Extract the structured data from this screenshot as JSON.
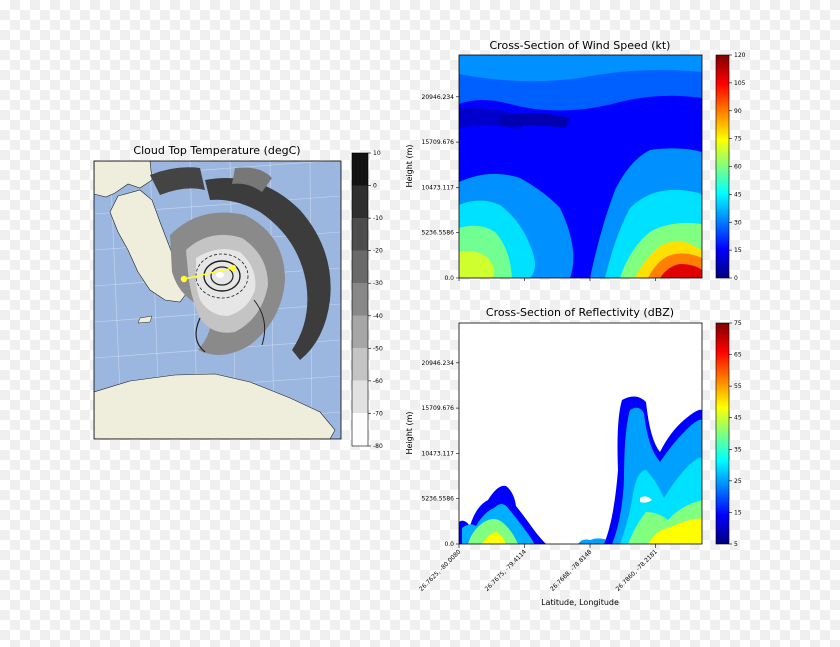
{
  "chart_data": [
    {
      "type": "map",
      "title": "Cloud Top Temperature (degC)",
      "colorbar": {
        "ticks": [
          10,
          0,
          -10,
          -20,
          -30,
          -40,
          -50,
          -60,
          -70,
          -80
        ],
        "colormap": "grayscale (black = warm, white = cold)"
      },
      "background_ocean": "#9bb7e0",
      "land_color": "#efeedd",
      "cross_section_line_color": "#ffff33",
      "grid": true
    },
    {
      "type": "heatmap",
      "title": "Cross-Section of Wind Speed (kt)",
      "ylabel": "Height (m)",
      "yticks": [
        "20946.234",
        "15709.676",
        "10473.117",
        "5236.5586",
        "0.0"
      ],
      "colorbar": {
        "ticks": [
          120,
          105,
          90,
          75,
          60,
          45,
          30,
          15,
          0
        ],
        "colormap": "jet"
      }
    },
    {
      "type": "heatmap",
      "title": "Cross-Section of Reflectivity (dBZ)",
      "ylabel": "Height (m)",
      "xlabel": "Latitude, Longitude",
      "yticks": [
        "20946.234",
        "15709.676",
        "10473.117",
        "5236.5586",
        "0.0"
      ],
      "xticks": [
        "26.7625, -80.0080",
        "26.7675, -79.4114",
        "26.7668, -78.8148",
        "26.7860, -78.2181"
      ],
      "colorbar": {
        "ticks": [
          75,
          65,
          55,
          45,
          35,
          25,
          15,
          5
        ],
        "colormap": "jet"
      }
    }
  ]
}
